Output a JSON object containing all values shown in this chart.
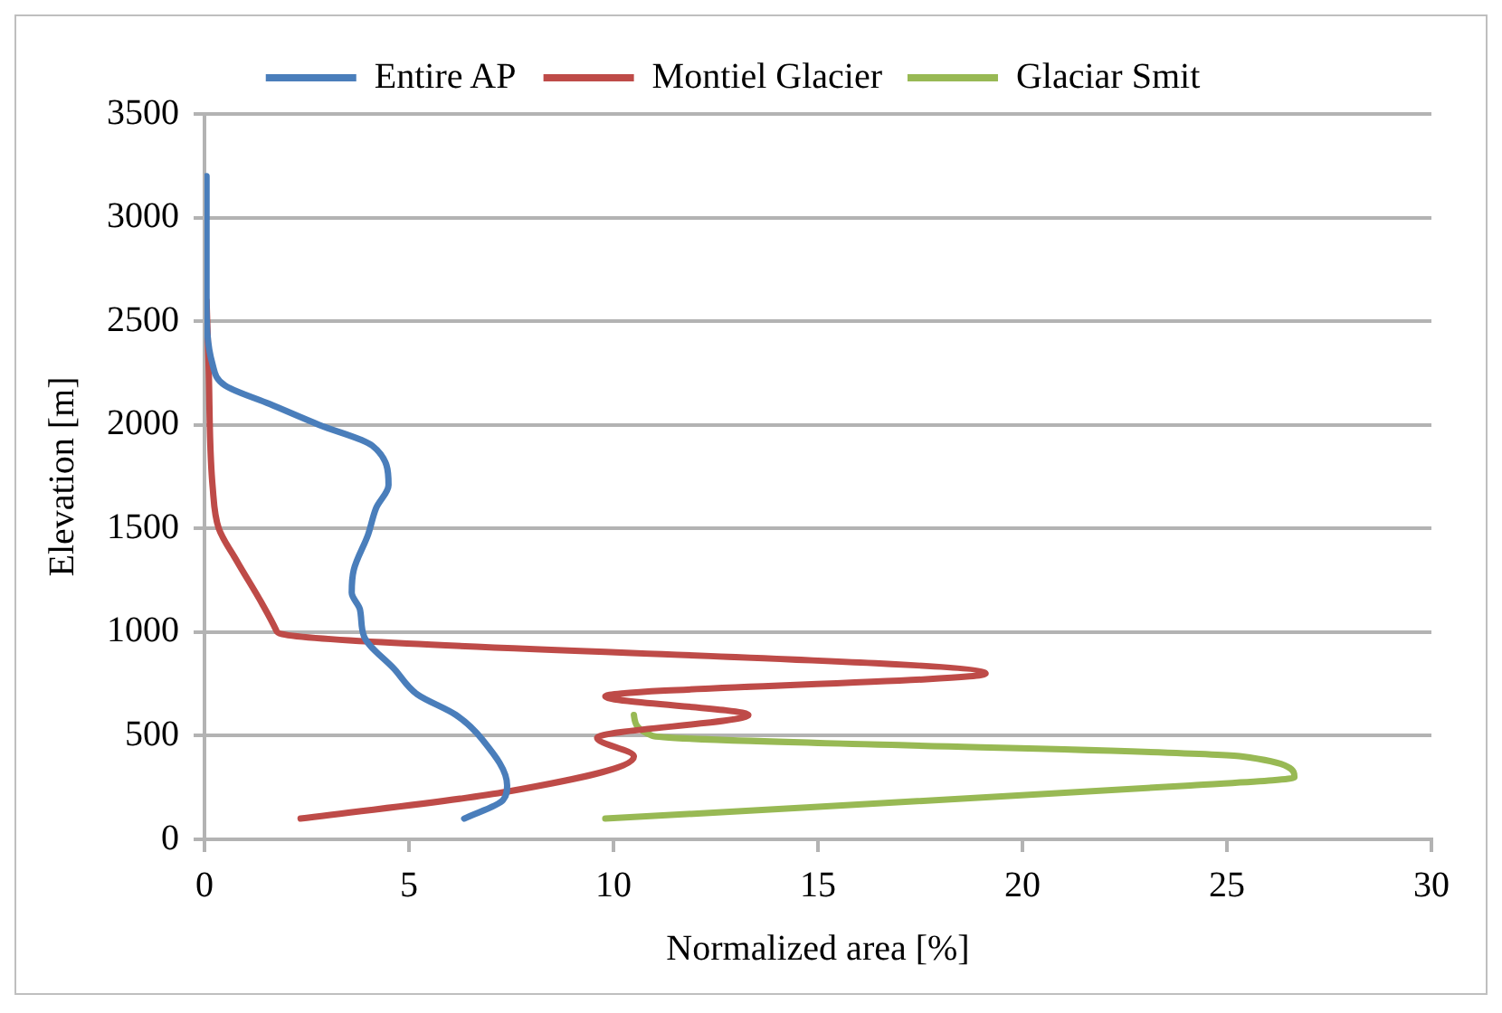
{
  "chart_data": {
    "type": "line",
    "orientation": "horizontal",
    "xlabel": "Normalized area [%]",
    "ylabel": "Elevation [m]",
    "xlim": [
      0,
      30
    ],
    "xticks": [
      0,
      5,
      10,
      15,
      20,
      25,
      30
    ],
    "ylim": [
      0,
      3500
    ],
    "yticks": [
      0,
      500,
      1000,
      1500,
      2000,
      2500,
      3000,
      3500
    ],
    "grid": "y",
    "legend": "top",
    "marker": "none",
    "line_style": "solid",
    "series": [
      {
        "name": "Entire AP",
        "color": "#4a7ebb",
        "x": [
          3200,
          2600,
          2290,
          2190,
          2100,
          2000,
          1900,
          1710,
          1600,
          1470,
          1300,
          1190,
          1110,
          980,
          820,
          700,
          600,
          480,
          260,
          190,
          100
        ],
        "values": [
          0.05,
          0.05,
          0.2,
          0.5,
          1.6,
          2.8,
          4.1,
          4.5,
          4.2,
          4.0,
          3.65,
          3.6,
          3.8,
          3.9,
          4.65,
          5.2,
          6.15,
          6.8,
          7.4,
          7.3,
          6.35
        ]
      },
      {
        "name": "Montiel Glacier",
        "color": "#be4b48",
        "x": [
          2600,
          2290,
          1700,
          1500,
          1340,
          1140,
          1010,
          990,
          800,
          690,
          600,
          490,
          400,
          230,
          100
        ],
        "values": [
          0.05,
          0.1,
          0.2,
          0.35,
          0.8,
          1.4,
          1.75,
          1.9,
          19.1,
          9.8,
          13.3,
          9.6,
          10.5,
          7.4,
          2.35
        ]
      },
      {
        "name": "Glaciar Smit",
        "color": "#98b954",
        "x": [
          600,
          500,
          400,
          300,
          260,
          100
        ],
        "values": [
          10.5,
          10.95,
          25.35,
          26.65,
          24.1,
          9.8
        ]
      }
    ]
  }
}
